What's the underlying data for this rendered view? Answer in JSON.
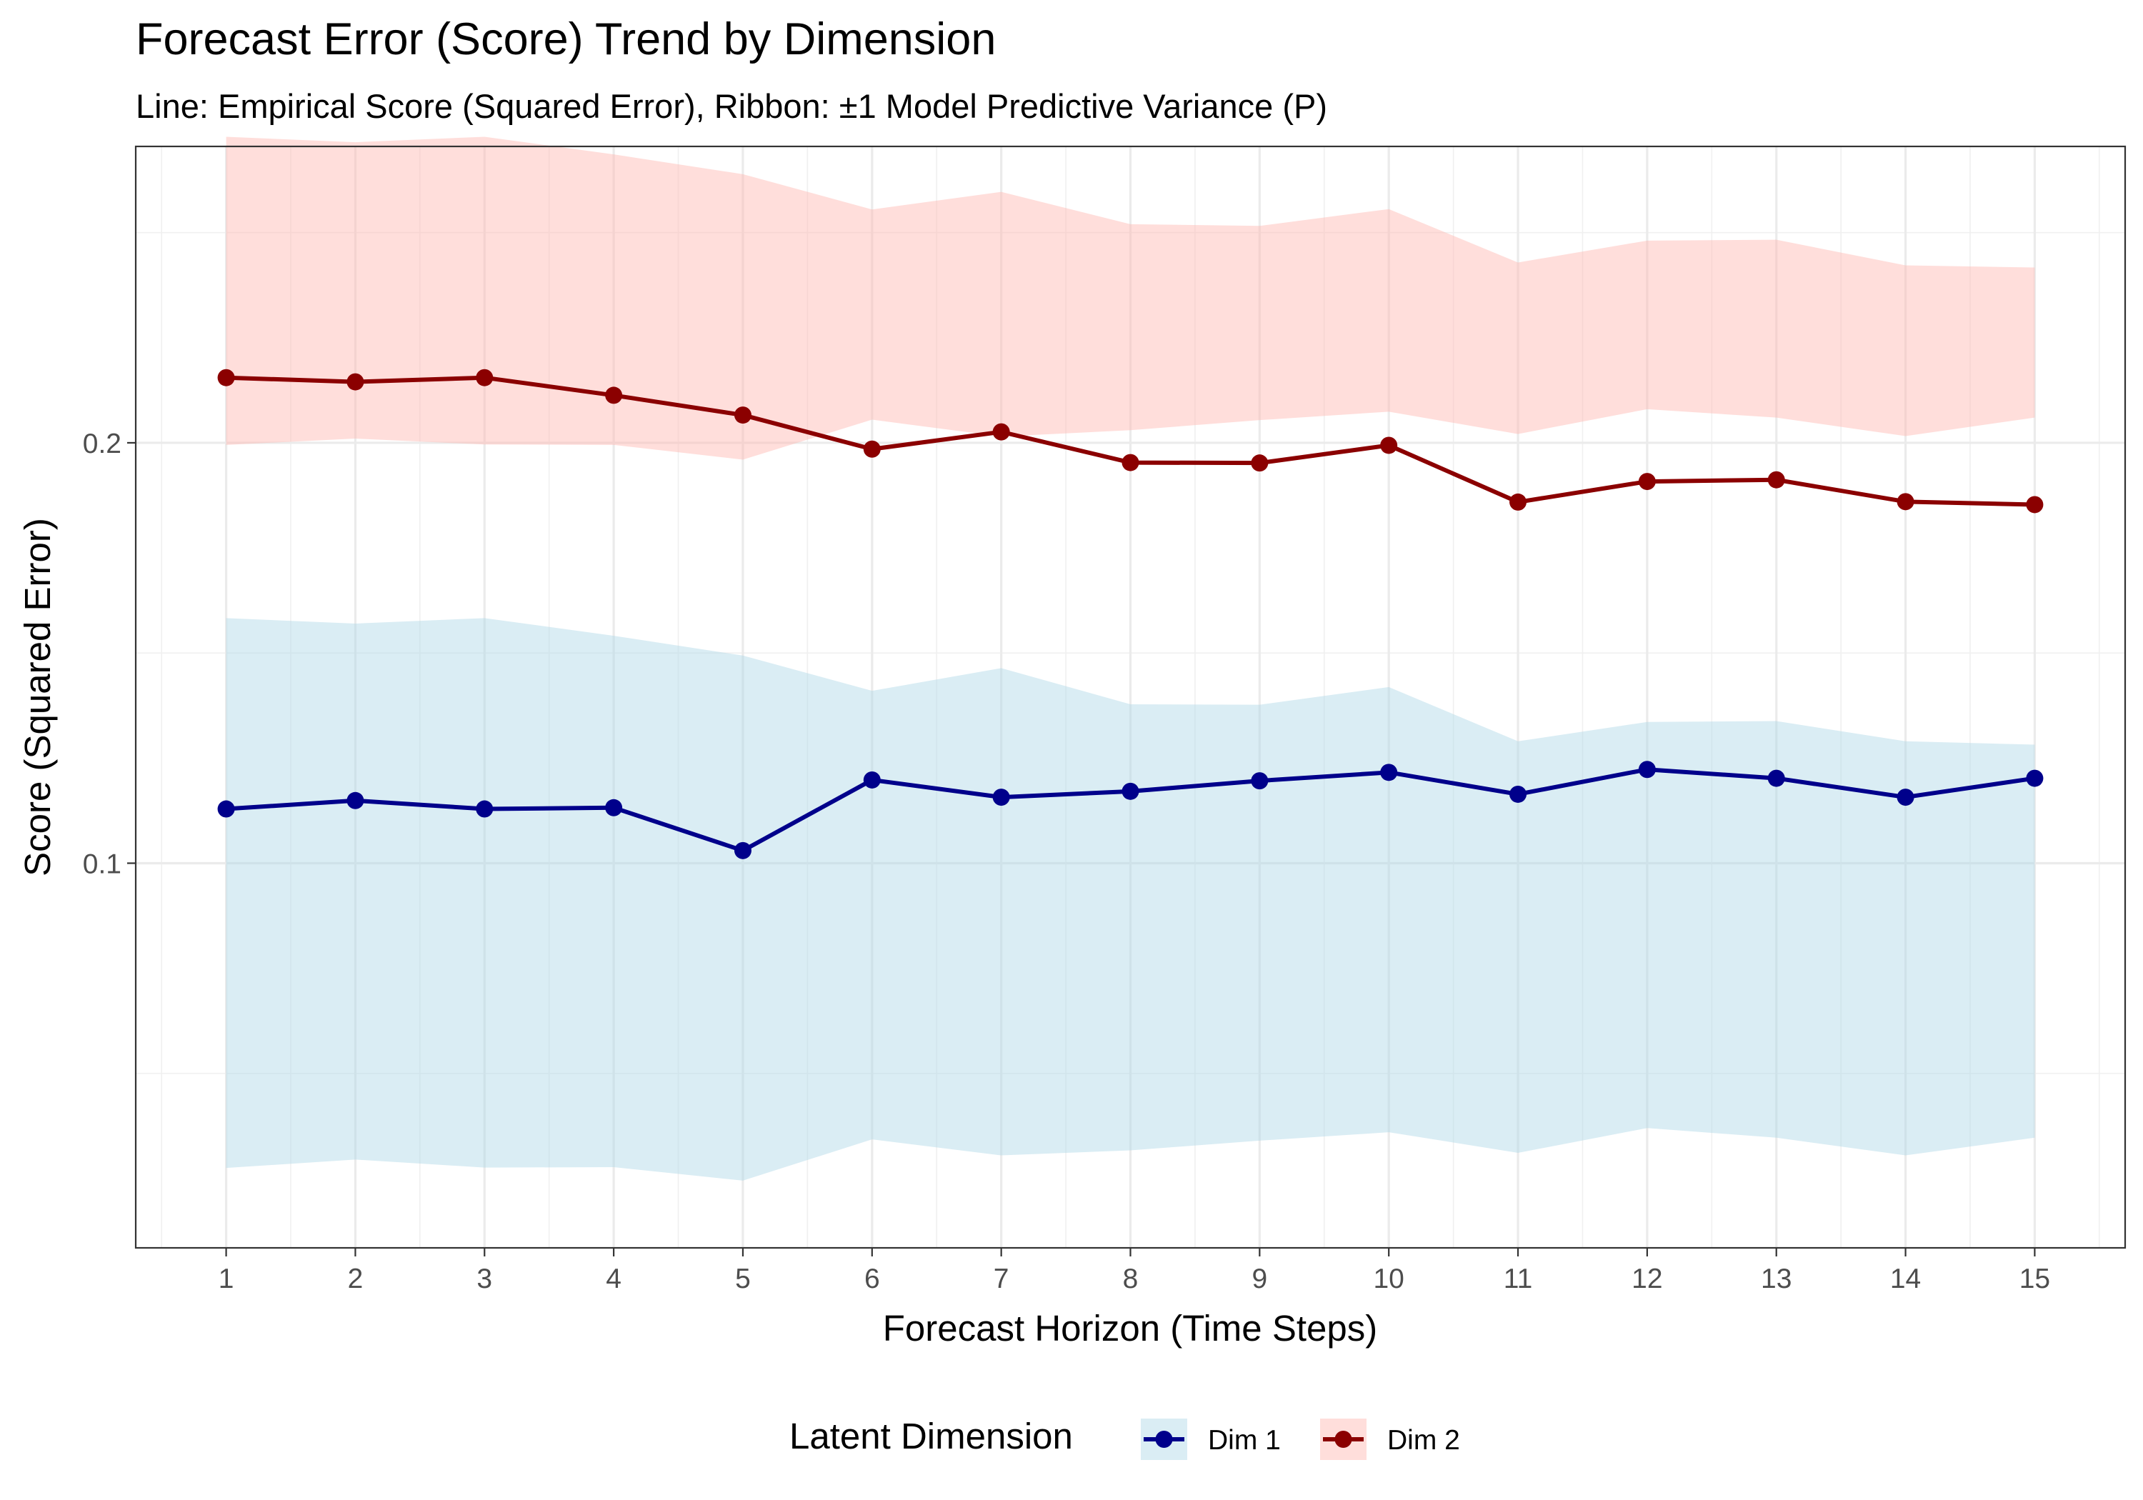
{
  "chart_data": {
    "type": "line",
    "title": "Forecast Error (Score) Trend by Dimension",
    "subtitle": "Line: Empirical Score (Squared Error), Ribbon: ±1 Model Predictive Variance (P)",
    "xlabel": "Forecast Horizon (Time Steps)",
    "ylabel": "Score (Squared Error)",
    "x": [
      1,
      2,
      3,
      4,
      5,
      6,
      7,
      8,
      9,
      10,
      11,
      12,
      13,
      14,
      15
    ],
    "x_tick_labels": [
      "1",
      "2",
      "3",
      "4",
      "5",
      "6",
      "7",
      "8",
      "9",
      "10",
      "11",
      "12",
      "13",
      "14",
      "15"
    ],
    "xlim": [
      0.3,
      15.7
    ],
    "ylim": [
      0.0085,
      0.2705
    ],
    "y_ticks": [
      0.1,
      0.2
    ],
    "y_tick_labels": [
      "0.1",
      "0.2"
    ],
    "grid": true,
    "legend_position": "bottom",
    "legend_title": "Latent Dimension",
    "series": [
      {
        "name": "Dim 1",
        "color": "#00008B",
        "ribbon_color": "#ADD8E6",
        "values": [
          0.1129,
          0.1149,
          0.1129,
          0.1132,
          0.103,
          0.1198,
          0.1157,
          0.1171,
          0.1196,
          0.1216,
          0.1164,
          0.1223,
          0.1202,
          0.1157,
          0.1202
        ],
        "lower": [
          0.0275,
          0.0295,
          0.0276,
          0.0277,
          0.0245,
          0.0343,
          0.0305,
          0.0317,
          0.034,
          0.036,
          0.0311,
          0.037,
          0.0347,
          0.0305,
          0.0347
        ],
        "upper": [
          0.1583,
          0.157,
          0.1583,
          0.1541,
          0.1494,
          0.141,
          0.1464,
          0.1378,
          0.1377,
          0.1419,
          0.129,
          0.1336,
          0.1338,
          0.129,
          0.1282
        ]
      },
      {
        "name": "Dim 2",
        "color": "#8B0000",
        "ribbon_color": "#FFB6B0",
        "values": [
          0.2155,
          0.2145,
          0.2155,
          0.2113,
          0.2066,
          0.1985,
          0.2026,
          0.1953,
          0.1952,
          0.1994,
          0.1859,
          0.1908,
          0.1912,
          0.186,
          0.1853
        ],
        "lower": [
          0.1995,
          0.201,
          0.1996,
          0.1995,
          0.196,
          0.2055,
          0.2015,
          0.203,
          0.2054,
          0.2074,
          0.2021,
          0.208,
          0.206,
          0.2016,
          0.206
        ],
        "upper": [
          0.2728,
          0.2715,
          0.2728,
          0.2686,
          0.2639,
          0.2555,
          0.2597,
          0.252,
          0.2516,
          0.2556,
          0.2429,
          0.2481,
          0.2483,
          0.2422,
          0.2417
        ]
      }
    ]
  }
}
